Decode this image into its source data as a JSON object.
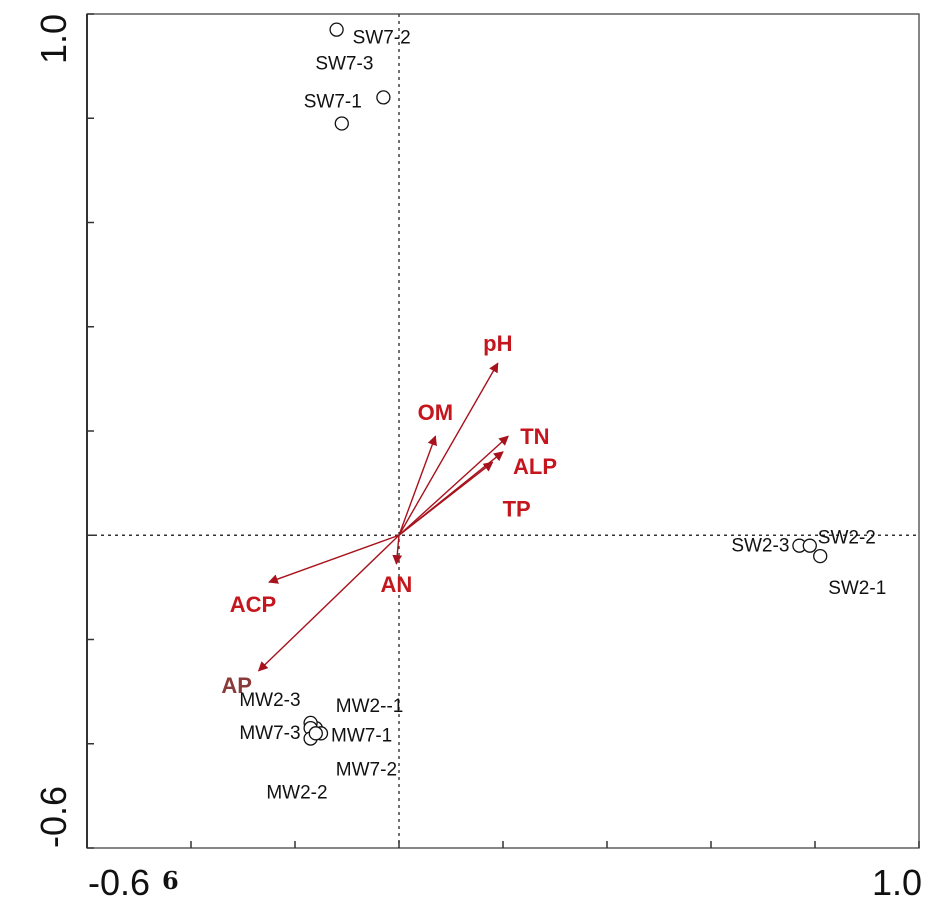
{
  "chart_data": {
    "type": "scatter",
    "title": "",
    "xlabel": "",
    "ylabel": "",
    "xlim": [
      -0.6,
      1.0
    ],
    "ylim": [
      -0.6,
      1.0
    ],
    "x_tick_labels": [
      "-0.6",
      "1.0"
    ],
    "y_tick_labels": [
      "-0.6",
      "1.0"
    ],
    "stray_text": "6",
    "grid": false,
    "reference_lines": [
      0,
      0
    ],
    "point_color": "#111111",
    "arrow_color": "#a8121c",
    "arrow_label_color": "#c4161c",
    "ap_color": "#8a3a3a",
    "samples": [
      {
        "label": "SW7-2",
        "x": -0.12,
        "y": 0.97
      },
      {
        "label": "SW7-3",
        "x": -0.03,
        "y": 0.84
      },
      {
        "label": "SW7-1",
        "x": -0.11,
        "y": 0.79
      },
      {
        "label": "SW2-3",
        "x": 0.77,
        "y": -0.02
      },
      {
        "label": "SW2-2",
        "x": 0.79,
        "y": -0.02
      },
      {
        "label": "SW2-1",
        "x": 0.81,
        "y": -0.04
      },
      {
        "label": "MW2--1",
        "x": -0.16,
        "y": -0.37
      },
      {
        "label": "MW2-3",
        "x": -0.17,
        "y": -0.36
      },
      {
        "label": "MW7-3",
        "x": -0.17,
        "y": -0.37
      },
      {
        "label": "MW7-1",
        "x": -0.15,
        "y": -0.38
      },
      {
        "label": "MW2-2",
        "x": -0.17,
        "y": -0.39
      },
      {
        "label": "MW7-2",
        "x": -0.16,
        "y": -0.38
      }
    ],
    "vectors": [
      {
        "label": "pH",
        "x": 0.19,
        "y": 0.33
      },
      {
        "label": "OM",
        "x": 0.07,
        "y": 0.19
      },
      {
        "label": "TN",
        "x": 0.21,
        "y": 0.19
      },
      {
        "label": "ALP",
        "x": 0.2,
        "y": 0.16
      },
      {
        "label": "TP",
        "x": 0.18,
        "y": 0.14
      },
      {
        "label": "AN",
        "x": -0.005,
        "y": -0.055
      },
      {
        "label": "ACP",
        "x": -0.25,
        "y": -0.09
      },
      {
        "label": "AP",
        "x": -0.27,
        "y": -0.26
      }
    ]
  }
}
